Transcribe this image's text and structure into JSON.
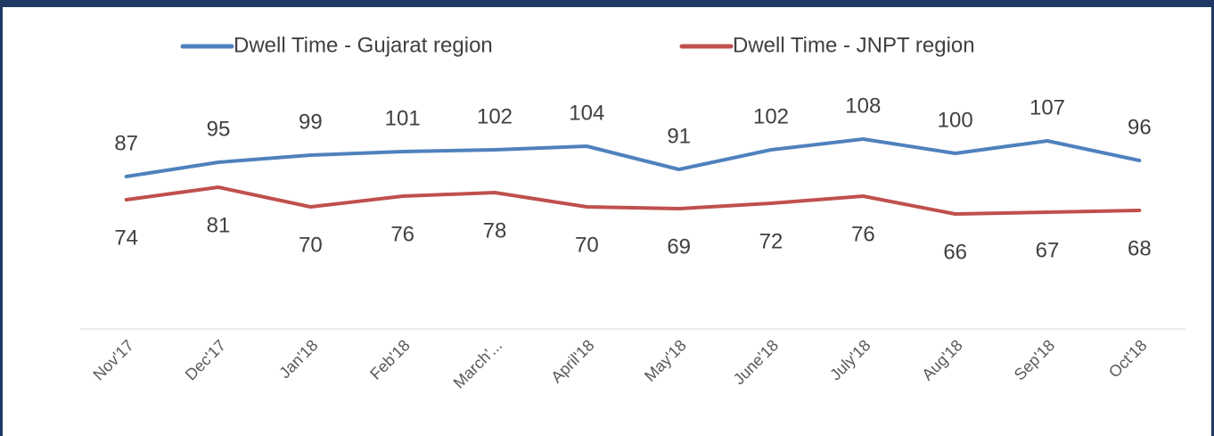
{
  "chart_data": {
    "type": "line",
    "categories": [
      "Nov'17",
      "Dec'17",
      "Jan'18",
      "Feb'18",
      "March'...",
      "April'18",
      "May'18",
      "June'18",
      "July'18",
      "Aug'18",
      "Sep'18",
      "Oct'18"
    ],
    "series": [
      {
        "name": "Dwell Time - Gujarat region",
        "color": "#4f81bd",
        "values": [
          87,
          95,
          99,
          101,
          102,
          104,
          91,
          102,
          108,
          100,
          107,
          96
        ]
      },
      {
        "name": "Dwell Time - JNPT region",
        "color": "#c0504d",
        "values": [
          74,
          81,
          70,
          76,
          78,
          70,
          69,
          72,
          76,
          66,
          67,
          68
        ]
      }
    ],
    "ylim": [
      0,
      140
    ]
  }
}
